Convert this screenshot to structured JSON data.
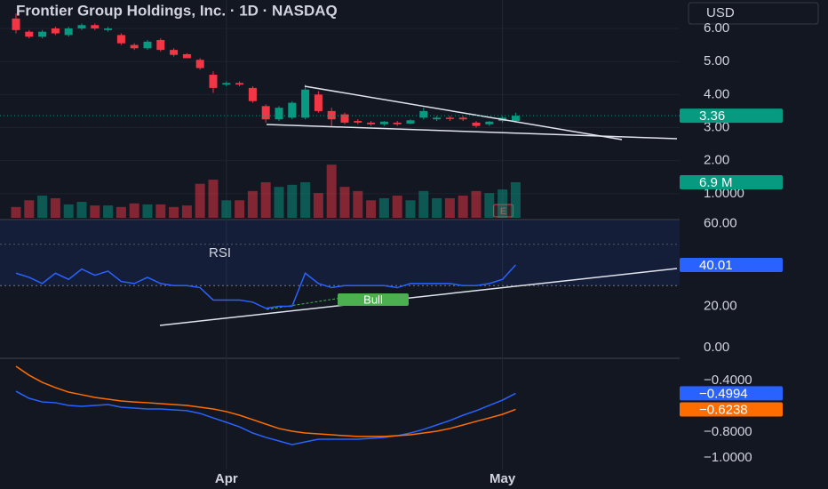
{
  "header": {
    "title": "Frontier Group Holdings, Inc. · 1D · NASDAQ",
    "currency": "USD"
  },
  "chart_data": [
    {
      "type": "candlestick",
      "categories": [
        null,
        null,
        null,
        null,
        null,
        null,
        null,
        null,
        null,
        null,
        null,
        null,
        null,
        null,
        null,
        null,
        "Apr",
        null,
        null,
        null,
        null,
        null,
        null,
        null,
        null,
        null,
        null,
        null,
        null,
        null,
        null,
        null,
        null,
        null,
        null,
        null,
        null,
        "May",
        null
      ],
      "open": [
        6.3,
        5.9,
        5.75,
        6.0,
        5.8,
        6.0,
        6.1,
        5.95,
        5.8,
        5.5,
        5.4,
        5.65,
        5.35,
        5.22,
        5.05,
        4.6,
        4.3,
        4.35,
        4.2,
        3.65,
        3.25,
        3.3,
        3.3,
        4.0,
        3.5,
        3.4,
        3.2,
        3.15,
        3.1,
        3.15,
        3.12,
        3.3,
        3.25,
        3.3,
        3.3,
        3.15,
        3.1,
        3.2,
        3.2
      ],
      "high": [
        6.45,
        5.95,
        5.95,
        6.05,
        6.05,
        6.15,
        6.15,
        6.05,
        5.85,
        5.55,
        5.65,
        5.7,
        5.4,
        5.25,
        5.1,
        4.7,
        4.4,
        4.4,
        4.25,
        3.7,
        3.65,
        3.8,
        4.3,
        4.1,
        3.6,
        3.45,
        3.25,
        3.2,
        3.2,
        3.2,
        3.25,
        3.6,
        3.35,
        3.35,
        3.35,
        3.2,
        3.2,
        3.35,
        3.45
      ],
      "low": [
        5.85,
        5.7,
        5.7,
        5.8,
        5.75,
        5.95,
        5.95,
        5.9,
        5.5,
        5.35,
        5.35,
        5.3,
        5.15,
        5.1,
        4.75,
        4.05,
        4.25,
        4.25,
        3.75,
        3.15,
        3.2,
        3.25,
        3.25,
        3.45,
        3.05,
        3.1,
        3.1,
        3.05,
        3.05,
        3.05,
        3.1,
        3.25,
        3.2,
        3.2,
        3.2,
        3.0,
        3.05,
        3.15,
        3.15
      ],
      "close": [
        5.95,
        5.75,
        5.9,
        5.85,
        6.0,
        6.1,
        6.0,
        6.0,
        5.55,
        5.4,
        5.6,
        5.35,
        5.2,
        5.1,
        4.8,
        4.2,
        4.35,
        4.3,
        3.8,
        3.25,
        3.6,
        3.75,
        4.15,
        3.5,
        3.25,
        3.15,
        3.15,
        3.1,
        3.18,
        3.1,
        3.22,
        3.5,
        3.3,
        3.28,
        3.25,
        3.05,
        3.18,
        3.3,
        3.36
      ],
      "up_color": "#089981",
      "down_color": "#f23645",
      "ylim": [
        0.27,
        6.86
      ],
      "yticks": [
        {
          "value": 1,
          "label": "1.0000"
        },
        {
          "value": 2,
          "label": "2.00"
        },
        {
          "value": 3,
          "label": "3.00"
        },
        {
          "value": 4,
          "label": "4.00"
        },
        {
          "value": 5,
          "label": "5.00"
        },
        {
          "value": 6,
          "label": "6.00"
        }
      ],
      "earnings_marker": "E"
    },
    {
      "type": "bar",
      "values": [
        2.1,
        3.4,
        4.3,
        3.8,
        2.6,
        3.1,
        2.4,
        2.4,
        2.1,
        2.8,
        2.6,
        2.6,
        2.1,
        2.4,
        6.6,
        7.4,
        3.4,
        3.4,
        5.2,
        6.9,
        6.0,
        6.4,
        6.9,
        4.8,
        10.3,
        6.0,
        5.2,
        3.4,
        3.8,
        4.3,
        3.4,
        5.2,
        3.8,
        3.8,
        4.3,
        5.2,
        4.8,
        5.5,
        6.9
      ],
      "value_labels": [
        null,
        null,
        null,
        null,
        null,
        null,
        null,
        null,
        null,
        null,
        null,
        null,
        null,
        null,
        null,
        null,
        null,
        null,
        null,
        null,
        null,
        null,
        null,
        null,
        null,
        null,
        null,
        null,
        null,
        null,
        null,
        null,
        null,
        null,
        null,
        null,
        null,
        null,
        "6.9 M"
      ],
      "ylim": [
        0,
        22.4
      ]
    },
    {
      "type": "line",
      "title": "RSI",
      "series": [
        {
          "color": "#2962ff",
          "values": [
            36,
            34,
            31,
            36,
            33,
            38,
            35,
            37,
            32,
            31,
            34,
            31,
            30,
            30,
            29,
            23,
            23,
            23,
            22,
            19,
            20,
            20,
            36,
            31,
            29,
            30,
            30,
            30,
            30,
            29,
            31,
            31,
            31,
            31,
            30,
            30,
            31,
            33,
            40.01
          ]
        }
      ],
      "band": [
        30,
        70
      ],
      "midline": 50,
      "ylim": [
        -3.9,
        61.5
      ],
      "yticks": [
        {
          "value": 0,
          "label": "0.00"
        },
        {
          "value": 20,
          "label": "20.00"
        },
        {
          "value": 60,
          "label": "60.00"
        }
      ],
      "annotation": "Bull"
    },
    {
      "type": "line",
      "series": [
        {
          "color": "#2962ff",
          "values": [
            -0.483,
            -0.538,
            -0.566,
            -0.572,
            -0.593,
            -0.6,
            -0.593,
            -0.586,
            -0.607,
            -0.614,
            -0.621,
            -0.621,
            -0.628,
            -0.634,
            -0.655,
            -0.69,
            -0.724,
            -0.759,
            -0.807,
            -0.841,
            -0.869,
            -0.897,
            -0.876,
            -0.855,
            -0.855,
            -0.855,
            -0.855,
            -0.848,
            -0.841,
            -0.828,
            -0.807,
            -0.779,
            -0.745,
            -0.71,
            -0.669,
            -0.634,
            -0.593,
            -0.552,
            -0.4994
          ],
          "value_labels": [
            null,
            null,
            null,
            null,
            null,
            null,
            null,
            null,
            null,
            null,
            null,
            null,
            null,
            null,
            null,
            null,
            null,
            null,
            null,
            null,
            null,
            null,
            null,
            null,
            null,
            null,
            null,
            null,
            null,
            null,
            null,
            null,
            null,
            null,
            null,
            null,
            null,
            null,
            "−0.4994"
          ]
        },
        {
          "color": "#ff6d00",
          "values": [
            -0.29,
            -0.359,
            -0.414,
            -0.455,
            -0.49,
            -0.51,
            -0.531,
            -0.545,
            -0.559,
            -0.566,
            -0.572,
            -0.579,
            -0.586,
            -0.593,
            -0.607,
            -0.621,
            -0.641,
            -0.669,
            -0.703,
            -0.738,
            -0.772,
            -0.793,
            -0.807,
            -0.814,
            -0.821,
            -0.828,
            -0.834,
            -0.834,
            -0.834,
            -0.828,
            -0.821,
            -0.807,
            -0.793,
            -0.772,
            -0.745,
            -0.717,
            -0.69,
            -0.662,
            -0.6238
          ],
          "value_labels": [
            null,
            null,
            null,
            null,
            null,
            null,
            null,
            null,
            null,
            null,
            null,
            null,
            null,
            null,
            null,
            null,
            null,
            null,
            null,
            null,
            null,
            null,
            null,
            null,
            null,
            null,
            null,
            null,
            null,
            null,
            null,
            null,
            null,
            null,
            null,
            null,
            null,
            null,
            "−0.6238"
          ]
        }
      ],
      "ylim": [
        -1.2414,
        -0.2414
      ],
      "yticks": [
        {
          "value": -1,
          "label": "−1.0000"
        },
        {
          "value": -0.8,
          "label": "−0.8000"
        },
        {
          "value": -0.4,
          "label": "−0.4000"
        }
      ]
    }
  ]
}
